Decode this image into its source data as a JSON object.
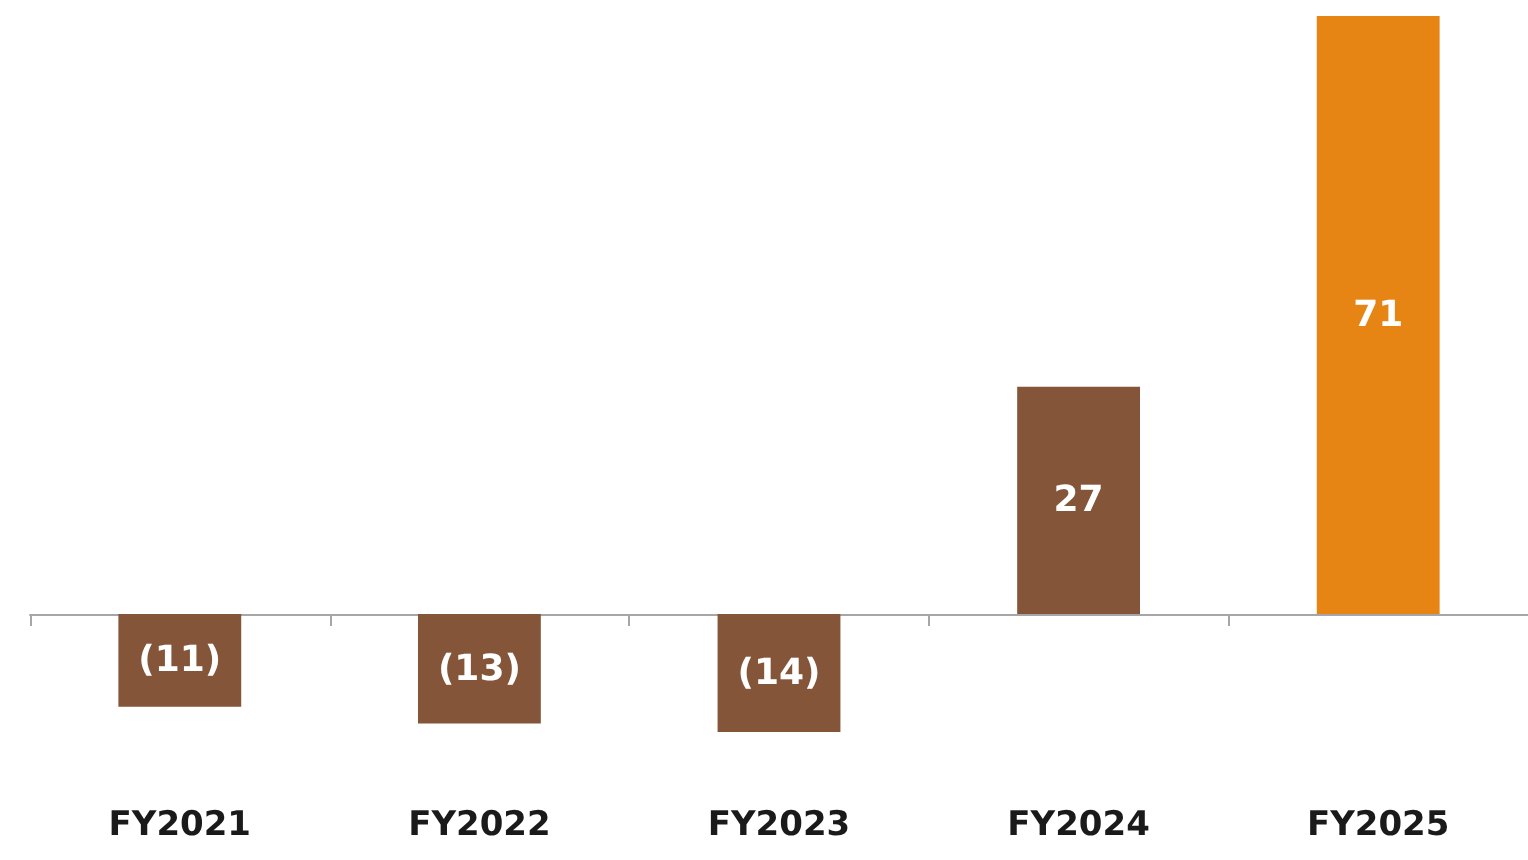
{
  "chart_data": {
    "type": "bar",
    "categories": [
      "FY2021",
      "FY2022",
      "FY2023",
      "FY2024",
      "FY2025"
    ],
    "values": [
      -11,
      -13,
      -14,
      27,
      71
    ],
    "colors": [
      "#845538",
      "#845538",
      "#845538",
      "#845538",
      "#e68414"
    ],
    "value_labels": [
      "(11)",
      "(13)",
      "(14)",
      "27",
      "71"
    ],
    "grid": false
  }
}
